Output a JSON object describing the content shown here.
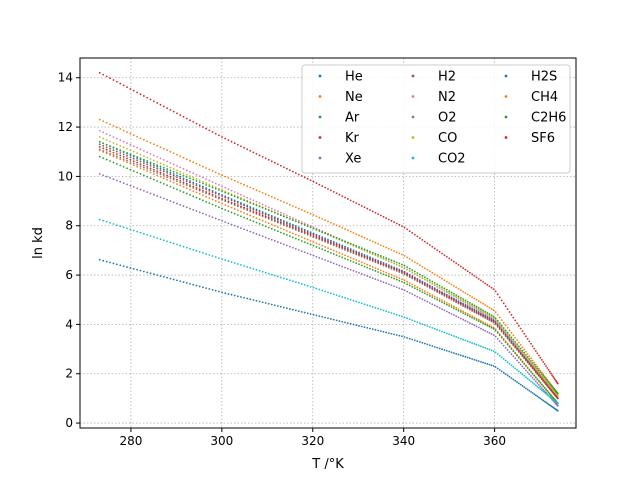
{
  "chart_data": {
    "type": "scatter",
    "xlabel": "T /°K",
    "ylabel": "ln kd",
    "xlim": [
      268.8,
      377.9
    ],
    "ylim": [
      -0.2,
      14.8
    ],
    "xticks": [
      280,
      300,
      320,
      340,
      360
    ],
    "yticks": [
      0,
      2,
      4,
      6,
      8,
      10,
      12,
      14
    ],
    "grid": true,
    "grid_style": "dotted",
    "legend_position": "upper-right",
    "legend_columns": 3,
    "x_start": 273.15,
    "x_end": 373.9,
    "series": [
      {
        "name": "He",
        "color": "#1f77b4",
        "x": [
          273.15,
          300,
          320,
          340,
          360,
          373.9
        ],
        "y": [
          6.62,
          5.3,
          4.4,
          3.5,
          2.3,
          0.5
        ]
      },
      {
        "name": "Ne",
        "color": "#ff7f0e",
        "x": [
          273.15,
          300,
          320,
          340,
          360,
          373.9
        ],
        "y": [
          11.05,
          8.9,
          7.35,
          5.8,
          3.85,
          0.8
        ]
      },
      {
        "name": "Ar",
        "color": "#2ca02c",
        "x": [
          273.15,
          300,
          320,
          340,
          360,
          373.9
        ],
        "y": [
          10.8,
          8.7,
          7.2,
          5.7,
          3.8,
          0.8
        ]
      },
      {
        "name": "Kr",
        "color": "#d62728",
        "x": [
          273.15,
          300,
          320,
          340,
          360,
          373.9
        ],
        "y": [
          14.2,
          11.6,
          9.8,
          7.95,
          5.4,
          1.6
        ]
      },
      {
        "name": "Xe",
        "color": "#9467bd",
        "x": [
          273.15,
          300,
          320,
          340,
          360,
          373.9
        ],
        "y": [
          10.1,
          8.2,
          6.8,
          5.4,
          3.55,
          0.7
        ]
      },
      {
        "name": "H2",
        "color": "#8c564b",
        "x": [
          273.15,
          300,
          320,
          340,
          360,
          373.9
        ],
        "y": [
          11.3,
          9.2,
          7.65,
          6.1,
          4.1,
          1.1
        ]
      },
      {
        "name": "N2",
        "color": "#e377c2",
        "x": [
          273.15,
          300,
          320,
          340,
          360,
          373.9
        ],
        "y": [
          11.85,
          9.6,
          7.95,
          6.3,
          4.2,
          1.1
        ]
      },
      {
        "name": "O2",
        "color": "#7f7f7f",
        "x": [
          273.15,
          300,
          320,
          340,
          360,
          373.9
        ],
        "y": [
          11.1,
          9.05,
          7.55,
          6.05,
          4.05,
          1.0
        ]
      },
      {
        "name": "CO",
        "color": "#bcbd22",
        "x": [
          273.15,
          300,
          320,
          340,
          360,
          373.9
        ],
        "y": [
          11.6,
          9.45,
          7.9,
          6.3,
          4.25,
          1.1
        ]
      },
      {
        "name": "CO2",
        "color": "#17becf",
        "x": [
          273.15,
          300,
          320,
          340,
          360,
          373.9
        ],
        "y": [
          8.25,
          6.65,
          5.5,
          4.3,
          2.9,
          0.8
        ]
      },
      {
        "name": "H2S",
        "color": "#1f77b4",
        "x": [
          273.15,
          300,
          320,
          340,
          360,
          373.9
        ],
        "y": [
          11.4,
          9.25,
          7.7,
          6.15,
          4.15,
          1.0
        ]
      },
      {
        "name": "CH4",
        "color": "#ff7f0e",
        "x": [
          273.15,
          300,
          320,
          340,
          360,
          373.9
        ],
        "y": [
          12.3,
          10.05,
          8.45,
          6.8,
          4.55,
          1.2
        ]
      },
      {
        "name": "C2H6",
        "color": "#2ca02c",
        "x": [
          273.15,
          300,
          320,
          340,
          360,
          373.9
        ],
        "y": [
          11.4,
          9.4,
          7.9,
          6.4,
          4.3,
          1.2
        ]
      },
      {
        "name": "SF6",
        "color": "#d62728",
        "x": [
          273.15,
          300,
          320,
          340,
          360,
          373.9
        ],
        "y": [
          11.2,
          9.1,
          7.6,
          6.1,
          4.1,
          1.0
        ]
      }
    ]
  }
}
